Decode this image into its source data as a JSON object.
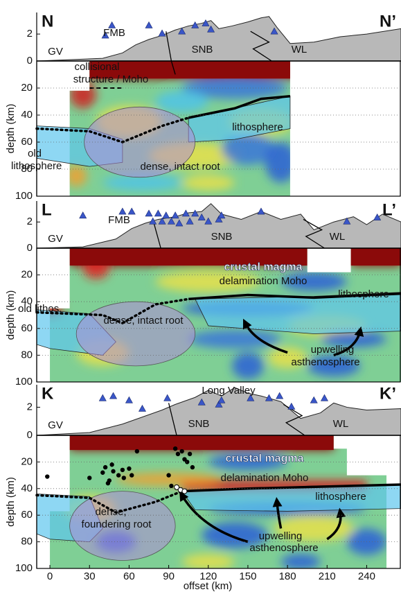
{
  "figure": {
    "x_label": "offset (km)",
    "xlim": [
      -10,
      266
    ],
    "xticks": [
      0,
      30,
      60,
      90,
      120,
      150,
      180,
      210,
      240
    ],
    "grid": true,
    "panels": [
      {
        "start": "N",
        "end": "N’",
        "y_label": "depth (km)",
        "ylim": [
          0,
          100
        ],
        "yticks": [
          0,
          20,
          40,
          60,
          80,
          100
        ],
        "elevation_lim": [
          0,
          3.6
        ],
        "elevation_ticks": [
          2
        ],
        "labels": {
          "gv": "GV",
          "fmb": "FMB",
          "snb": "SNB",
          "wl": "WL",
          "moho": [
            "collisional",
            "structure / Moho"
          ],
          "lithosphere": "lithosphere",
          "old_lithosphere": [
            "old",
            "lithosphere"
          ],
          "root": "dense, intact root"
        }
      },
      {
        "start": "L",
        "end": "L’",
        "y_label": "depth (km)",
        "ylim": [
          0,
          100
        ],
        "yticks": [
          0,
          20,
          40,
          60,
          80,
          100
        ],
        "elevation_lim": [
          0,
          3.6
        ],
        "elevation_ticks": [
          2
        ],
        "labels": {
          "gv": "GV",
          "fmb": "FMB",
          "snb": "SNB",
          "wl": "WL",
          "magma": "crustal magma",
          "moho": "delamination Moho",
          "lithosphere": "lithosphere",
          "old_lithosphere": "old lithos.",
          "root": "dense, intact root",
          "upwelling": [
            "upwelling",
            "asthenosphere"
          ]
        }
      },
      {
        "start": "K",
        "end": "K’",
        "y_label": "depth (km)",
        "ylim": [
          0,
          100
        ],
        "yticks": [
          0,
          20,
          40,
          60,
          80,
          100
        ],
        "elevation_lim": [
          0,
          3.6
        ],
        "elevation_ticks": [
          2
        ],
        "labels": {
          "long_valley": "Long Valley",
          "gv": "GV",
          "snb": "SNB",
          "wl": "WL",
          "magma": "crustal magma",
          "moho": "delamination Moho",
          "lithosphere": "lithosphere",
          "root": [
            "dense,",
            "foundering root"
          ],
          "upwelling": [
            "upwelling",
            "asthenosphere"
          ]
        }
      }
    ]
  }
}
